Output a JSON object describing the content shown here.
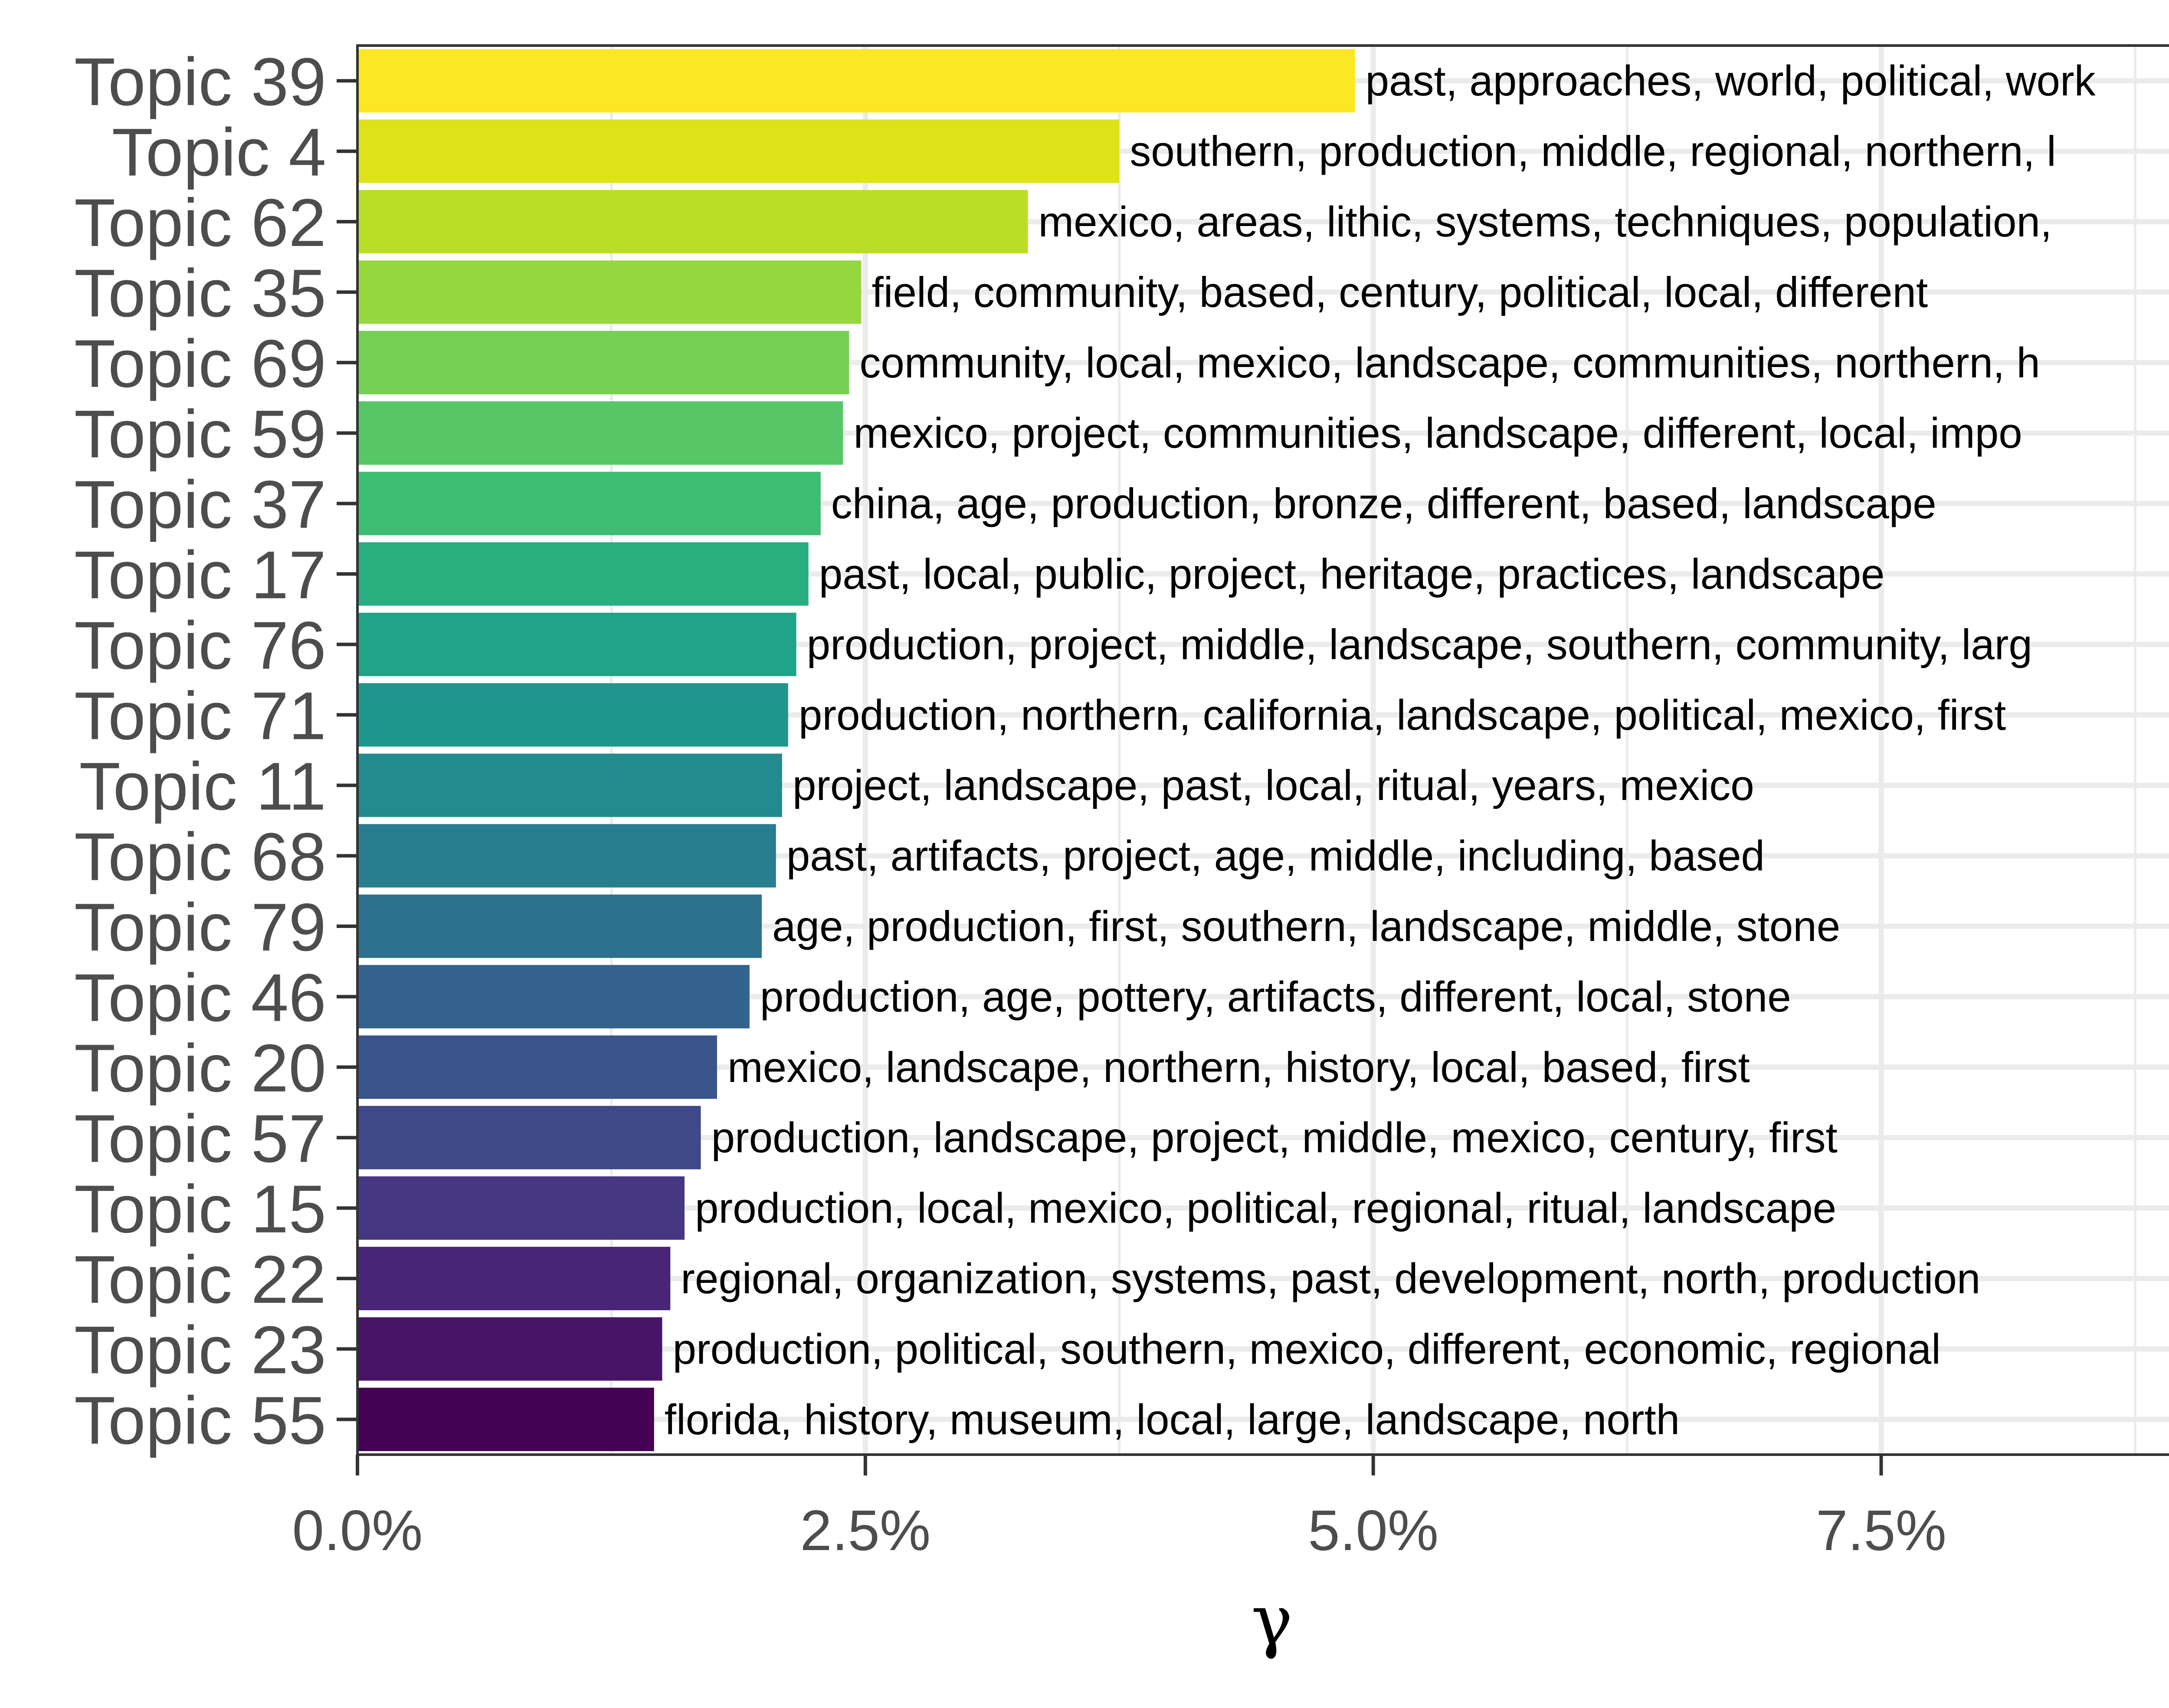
{
  "chart_data": {
    "type": "bar",
    "orientation": "horizontal",
    "title": "",
    "xlabel": "γ",
    "ylabel": "",
    "xlim": [
      0,
      9
    ],
    "x_ticks": [
      0,
      2.5,
      5.0,
      7.5
    ],
    "x_tick_labels": [
      "0.0%",
      "2.5%",
      "5.0%",
      "7.5%"
    ],
    "grid": true,
    "legend": "none",
    "categories": [
      "Topic 39",
      "Topic 4",
      "Topic 62",
      "Topic 35",
      "Topic 69",
      "Topic 59",
      "Topic 37",
      "Topic 17",
      "Topic 76",
      "Topic 71",
      "Topic 11",
      "Topic 68",
      "Topic 79",
      "Topic 46",
      "Topic 20",
      "Topic 57",
      "Topic 15",
      "Topic 22",
      "Topic 23",
      "Topic 55"
    ],
    "values": [
      4.91,
      3.75,
      3.3,
      2.48,
      2.42,
      2.39,
      2.28,
      2.22,
      2.16,
      2.12,
      2.09,
      2.06,
      1.99,
      1.93,
      1.77,
      1.69,
      1.61,
      1.54,
      1.5,
      1.46
    ],
    "unit": "%",
    "labels": [
      "past, approaches, world, political, work",
      "southern, production, middle, regional, northern, l",
      "mexico, areas, lithic, systems, techniques, population,",
      "field, community, based, century, political, local, different",
      "community, local, mexico, landscape, communities, northern, h",
      "mexico, project, communities, landscape, different, local, impo",
      "china, age, production, bronze, different, based, landscape",
      "past, local, public, project, heritage, practices, landscape",
      "production, project, middle, landscape, southern, community, larg",
      "production, northern, california, landscape, political, mexico, first",
      "project, landscape, past, local, ritual, years, mexico",
      "past, artifacts, project, age, middle, including, based",
      "age, production, first, southern, landscape, middle, stone",
      "production, age, pottery, artifacts, different, local, stone",
      "mexico, landscape, northern, history, local, based, first",
      "production, landscape, project, middle, mexico, century, first",
      "production, local, mexico, political, regional, ritual, landscape",
      "regional, organization, systems, past, development, north, production",
      "production, political, southern, mexico, different, economic, regional",
      "florida, history, museum, local, large, landscape, north"
    ],
    "colors": [
      "#fde725",
      "#dde318",
      "#bade28",
      "#95d840",
      "#75d054",
      "#56c667",
      "#3dbc74",
      "#29af7f",
      "#20a386",
      "#1f968b",
      "#238a8d",
      "#287d8e",
      "#2d718e",
      "#33638d",
      "#39558c",
      "#3f4889",
      "#453781",
      "#482576",
      "#481467",
      "#440154"
    ]
  }
}
